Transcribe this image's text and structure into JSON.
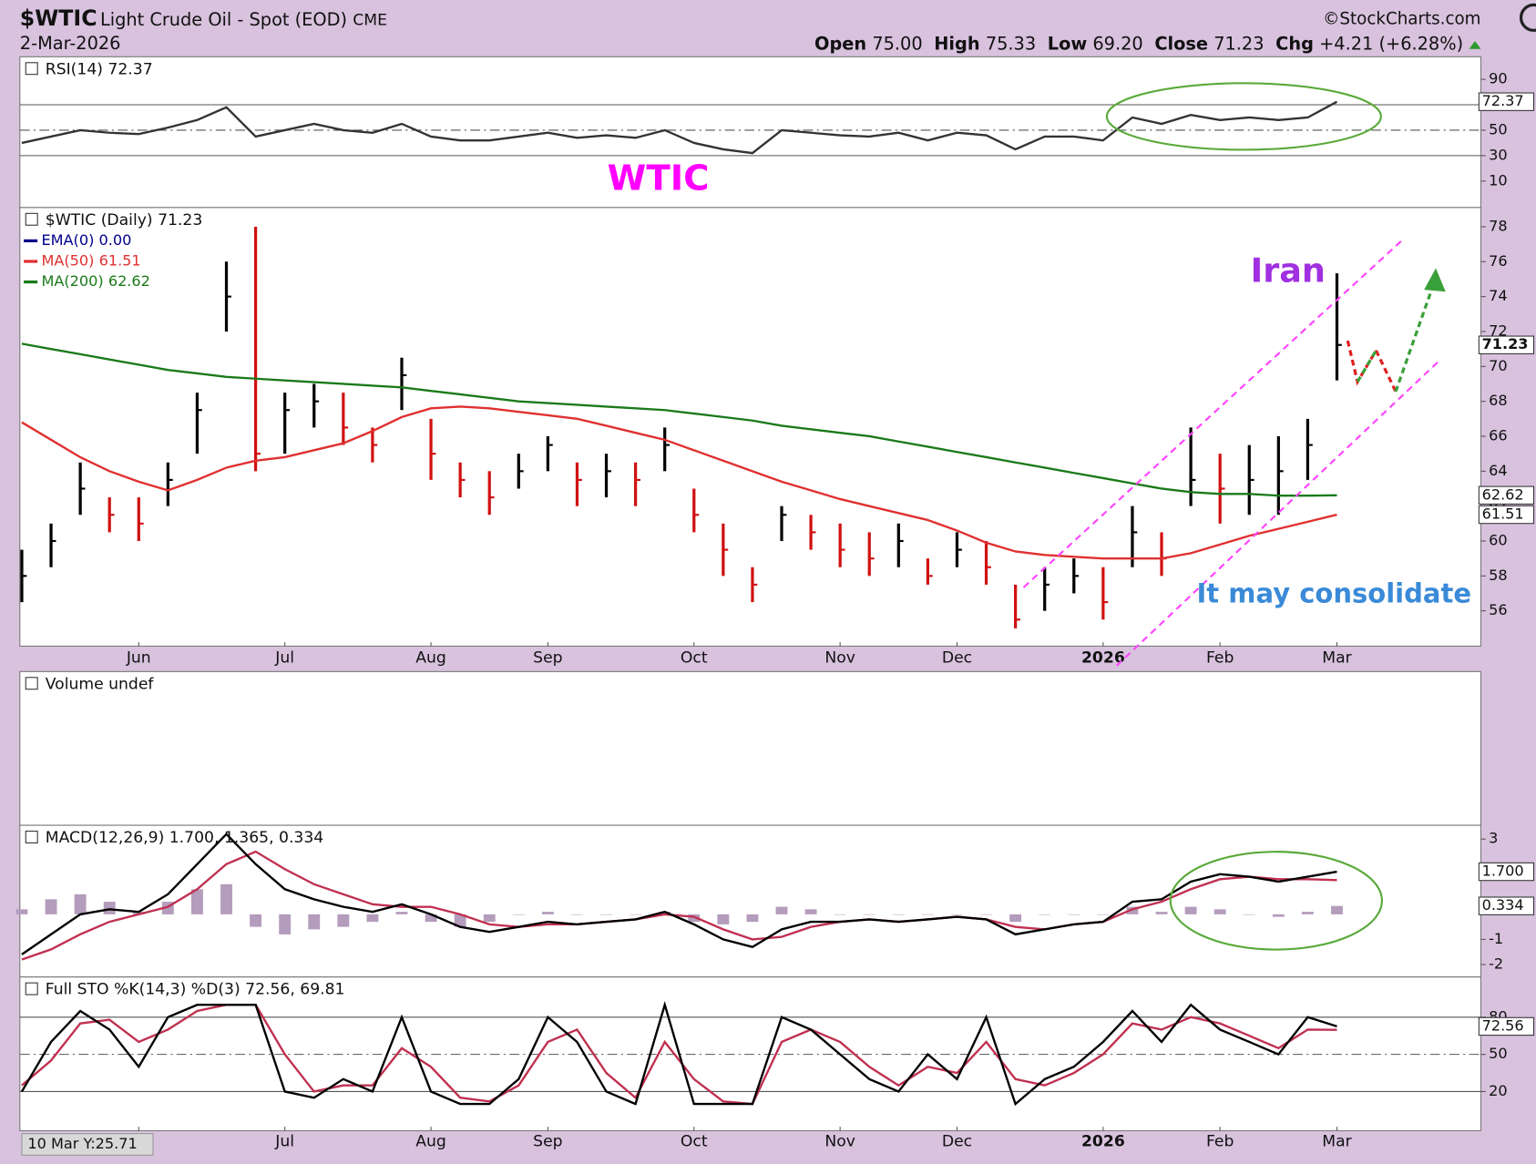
{
  "header": {
    "symbol": "$WTIC",
    "name": "Light Crude Oil - Spot (EOD)",
    "exchange": "CME",
    "date": "2-Mar-2026",
    "copyright": "©StockCharts.com",
    "open_label": "Open",
    "open": "75.00",
    "high_label": "High",
    "high": "75.33",
    "low_label": "Low",
    "low": "69.20",
    "close_label": "Close",
    "close": "71.23",
    "chg_label": "Chg",
    "chg": "+4.21 (+6.28%)"
  },
  "annotations": {
    "panel_note": "WTIC",
    "event": "Iran",
    "outlook": "It may consolidate",
    "cursor": "10 Mar Y:25.71"
  },
  "chart_data": [
    {
      "type": "line",
      "title": "RSI(14) 72.37",
      "ylim": [
        -10.8,
        107.7
      ],
      "yticks": [
        10,
        30,
        50,
        90
      ],
      "hlines": [
        70,
        30
      ],
      "dashed_hlines": [
        50
      ],
      "last_labels": [
        72.37
      ],
      "series": [
        {
          "color": "#333333",
          "values": [
            40,
            45,
            50,
            48,
            47,
            52,
            58,
            68,
            45,
            50,
            55,
            50,
            48,
            55,
            45,
            42,
            42,
            45,
            48,
            44,
            46,
            44,
            50,
            40,
            35,
            32,
            50,
            48,
            46,
            45,
            48,
            42,
            48,
            46,
            35,
            45,
            45,
            42,
            60,
            55,
            62,
            58,
            60,
            58,
            60,
            72.37
          ]
        }
      ]
    },
    {
      "type": "ohlc",
      "title": "$WTIC (Daily) 71.23",
      "ylim": [
        53.98,
        79.1
      ],
      "yticks": [
        56,
        58,
        60,
        62,
        64,
        66,
        68,
        70,
        72,
        74,
        76,
        78
      ],
      "last_labels": [
        71.23,
        62.62,
        61.51
      ],
      "up_color": "#000000",
      "down_color": "#d01010",
      "categories": [
        null,
        null,
        null,
        null,
        "Jun",
        null,
        null,
        null,
        null,
        "Jul",
        null,
        null,
        null,
        null,
        "Aug",
        null,
        null,
        null,
        "Sep",
        null,
        null,
        null,
        null,
        "Oct",
        null,
        null,
        null,
        null,
        "Nov",
        null,
        null,
        null,
        "Dec",
        null,
        null,
        null,
        null,
        "2026",
        null,
        null,
        null,
        "Feb",
        null,
        null,
        null,
        "Mar"
      ],
      "series": [
        {
          "close": [
            58.0,
            60.0,
            63.0,
            61.5,
            61.0,
            63.5,
            67.5,
            74.0,
            65.0,
            67.5,
            68.0,
            66.5,
            65.5,
            69.5,
            65.0,
            63.5,
            62.5,
            64.0,
            65.5,
            63.5,
            64.0,
            63.5,
            65.5,
            61.5,
            59.5,
            57.5,
            61.5,
            60.5,
            59.5,
            59.0,
            60.0,
            58.0,
            59.5,
            58.5,
            55.5,
            57.5,
            58.0,
            56.5,
            60.5,
            59.0,
            63.5,
            63.0,
            63.5,
            64.0,
            65.5,
            71.23
          ],
          "high": [
            59.5,
            61,
            64.5,
            62.5,
            62.5,
            64.5,
            68.5,
            76,
            78,
            68.5,
            69,
            68.5,
            66.5,
            70.5,
            67,
            64.5,
            64,
            65,
            66,
            64.5,
            65,
            64.5,
            66.5,
            63,
            61,
            58.5,
            62,
            61.5,
            61,
            60.5,
            61,
            59,
            60.5,
            60,
            57.5,
            58.5,
            59,
            58.5,
            62,
            60.5,
            66.5,
            65,
            65.5,
            66,
            67,
            75.33
          ],
          "low": [
            56.5,
            58.5,
            61.5,
            60.5,
            60,
            62,
            65,
            72,
            64,
            65,
            66.5,
            65.5,
            64.5,
            67.5,
            63.5,
            62.5,
            61.5,
            63,
            64,
            62,
            62.5,
            62,
            64,
            60.5,
            58,
            56.5,
            60,
            59.5,
            58.5,
            58,
            58.5,
            57.5,
            58.5,
            57.5,
            55,
            56,
            57,
            55.5,
            58.5,
            58,
            62,
            61,
            61.5,
            61.5,
            63.5,
            69.2
          ]
        },
        {
          "name": "EMA(0) 0.00",
          "color": "#00008b"
        },
        {
          "name": "MA(50) 61.51",
          "color": "#e03030",
          "values": [
            66.8,
            65.8,
            64.8,
            64.0,
            63.4,
            62.9,
            63.5,
            64.2,
            64.6,
            64.8,
            65.2,
            65.6,
            66.3,
            67.1,
            67.6,
            67.7,
            67.6,
            67.4,
            67.2,
            67.0,
            66.6,
            66.2,
            65.8,
            65.2,
            64.6,
            64.0,
            63.4,
            62.9,
            62.4,
            62.0,
            61.6,
            61.2,
            60.6,
            59.9,
            59.4,
            59.2,
            59.1,
            59.0,
            59.0,
            59.0,
            59.3,
            59.8,
            60.3,
            60.7,
            61.1,
            61.51
          ]
        },
        {
          "name": "MA(200) 62.62",
          "color": "#1a7a1a",
          "values": [
            71.3,
            71.0,
            70.7,
            70.4,
            70.1,
            69.8,
            69.6,
            69.4,
            69.3,
            69.2,
            69.1,
            69.0,
            68.9,
            68.8,
            68.6,
            68.4,
            68.2,
            68.0,
            67.9,
            67.8,
            67.7,
            67.6,
            67.5,
            67.3,
            67.1,
            66.9,
            66.6,
            66.4,
            66.2,
            66.0,
            65.7,
            65.4,
            65.1,
            64.8,
            64.5,
            64.2,
            63.9,
            63.6,
            63.3,
            63.0,
            62.8,
            62.7,
            62.7,
            62.6,
            62.6,
            62.62
          ]
        }
      ]
    },
    {
      "type": "volume",
      "title": "Volume undef"
    },
    {
      "type": "line",
      "title": "MACD(12,26,9) 1.700, 1.365, 0.334",
      "ylim": [
        -2.5,
        3.55
      ],
      "yticks": [
        3,
        -1,
        -2
      ],
      "last_labels": [
        {
          "value": 1.7,
          "label": "1.700"
        },
        {
          "value": 0.334,
          "label": "0.334"
        }
      ],
      "series": [
        {
          "type": "bar",
          "color": "#b49cbc",
          "values": [
            0.2,
            0.6,
            0.8,
            0.5,
            0.1,
            0.5,
            1.0,
            1.2,
            -0.5,
            -0.8,
            -0.6,
            -0.5,
            -0.3,
            0.1,
            -0.3,
            -0.5,
            -0.3,
            0.0,
            0.1,
            0.0,
            0.0,
            0.0,
            0.1,
            -0.3,
            -0.4,
            -0.3,
            0.3,
            0.2,
            0.0,
            0.0,
            0.0,
            0.0,
            0.0,
            0.0,
            -0.3,
            0.0,
            0.0,
            0.0,
            0.3,
            0.1,
            0.3,
            0.2,
            0.0,
            -0.1,
            0.1,
            0.334
          ]
        },
        {
          "color": "#c03050",
          "values": [
            -1.8,
            -1.4,
            -0.8,
            -0.3,
            0.0,
            0.3,
            1.0,
            2.0,
            2.5,
            1.8,
            1.2,
            0.8,
            0.4,
            0.3,
            0.3,
            0.0,
            -0.4,
            -0.5,
            -0.4,
            -0.4,
            -0.3,
            -0.2,
            0.0,
            -0.1,
            -0.6,
            -1.0,
            -0.9,
            -0.5,
            -0.3,
            -0.2,
            -0.3,
            -0.2,
            -0.1,
            -0.2,
            -0.5,
            -0.6,
            -0.4,
            -0.3,
            0.2,
            0.5,
            1.0,
            1.4,
            1.5,
            1.4,
            1.4,
            1.365
          ]
        },
        {
          "color": "#000000",
          "values": [
            -1.6,
            -0.8,
            0.0,
            0.2,
            0.1,
            0.8,
            2.0,
            3.2,
            2.0,
            1.0,
            0.6,
            0.3,
            0.1,
            0.4,
            0.0,
            -0.5,
            -0.7,
            -0.5,
            -0.3,
            -0.4,
            -0.3,
            -0.2,
            0.1,
            -0.4,
            -1.0,
            -1.3,
            -0.6,
            -0.3,
            -0.3,
            -0.2,
            -0.3,
            -0.2,
            -0.1,
            -0.2,
            -0.8,
            -0.6,
            -0.4,
            -0.3,
            0.5,
            0.6,
            1.3,
            1.6,
            1.5,
            1.3,
            1.5,
            1.7
          ]
        }
      ]
    },
    {
      "type": "line",
      "title": "Full STO %K(14,3) %D(3) 72.56, 69.81",
      "ylim": [
        -11.6,
        112.4
      ],
      "yticks": [
        20,
        50,
        80
      ],
      "hlines": [
        80,
        20
      ],
      "dashed_hlines": [
        50
      ],
      "last_labels": [
        72.56
      ],
      "series": [
        {
          "color": "#c03050",
          "values": [
            25,
            45,
            75,
            78,
            60,
            70,
            85,
            90,
            90,
            50,
            20,
            25,
            25,
            55,
            40,
            15,
            12,
            25,
            60,
            70,
            35,
            15,
            60,
            30,
            12,
            10,
            60,
            70,
            60,
            40,
            25,
            40,
            35,
            60,
            30,
            25,
            35,
            50,
            75,
            70,
            80,
            75,
            65,
            55,
            70,
            69.81
          ]
        },
        {
          "color": "#000000",
          "values": [
            20,
            60,
            85,
            70,
            40,
            80,
            90,
            90,
            90,
            20,
            15,
            30,
            20,
            80,
            20,
            10,
            10,
            30,
            80,
            60,
            20,
            10,
            90,
            10,
            10,
            10,
            80,
            70,
            50,
            30,
            20,
            50,
            30,
            80,
            10,
            30,
            40,
            60,
            85,
            60,
            90,
            70,
            60,
            50,
            80,
            72.56
          ]
        }
      ]
    }
  ]
}
